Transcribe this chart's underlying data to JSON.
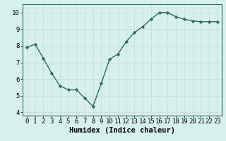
{
  "x": [
    0,
    1,
    2,
    3,
    4,
    5,
    6,
    7,
    8,
    9,
    10,
    11,
    12,
    13,
    14,
    15,
    16,
    17,
    18,
    19,
    20,
    21,
    22,
    23
  ],
  "y": [
    7.9,
    8.1,
    7.25,
    6.35,
    5.6,
    5.35,
    5.35,
    4.85,
    4.35,
    5.75,
    7.2,
    7.5,
    8.25,
    8.8,
    9.15,
    9.6,
    10.0,
    10.0,
    9.75,
    9.6,
    9.5,
    9.45,
    9.45,
    9.45
  ],
  "line_color": "#2e6b5e",
  "marker": "D",
  "marker_size": 2.2,
  "line_width": 1.0,
  "xlabel": "Humidex (Indice chaleur)",
  "xlabel_fontsize": 7.5,
  "xlabel_weight": "bold",
  "ylim": [
    3.8,
    10.5
  ],
  "xlim": [
    -0.5,
    23.5
  ],
  "yticks": [
    4,
    5,
    6,
    7,
    8,
    9,
    10
  ],
  "xticks": [
    0,
    1,
    2,
    3,
    4,
    5,
    6,
    7,
    8,
    9,
    10,
    11,
    12,
    13,
    14,
    15,
    16,
    17,
    18,
    19,
    20,
    21,
    22,
    23
  ],
  "bg_color": "#d6f0ee",
  "grid_color": "#c8dedd",
  "tick_fontsize": 6.5,
  "spine_color": "#2e6b5e"
}
